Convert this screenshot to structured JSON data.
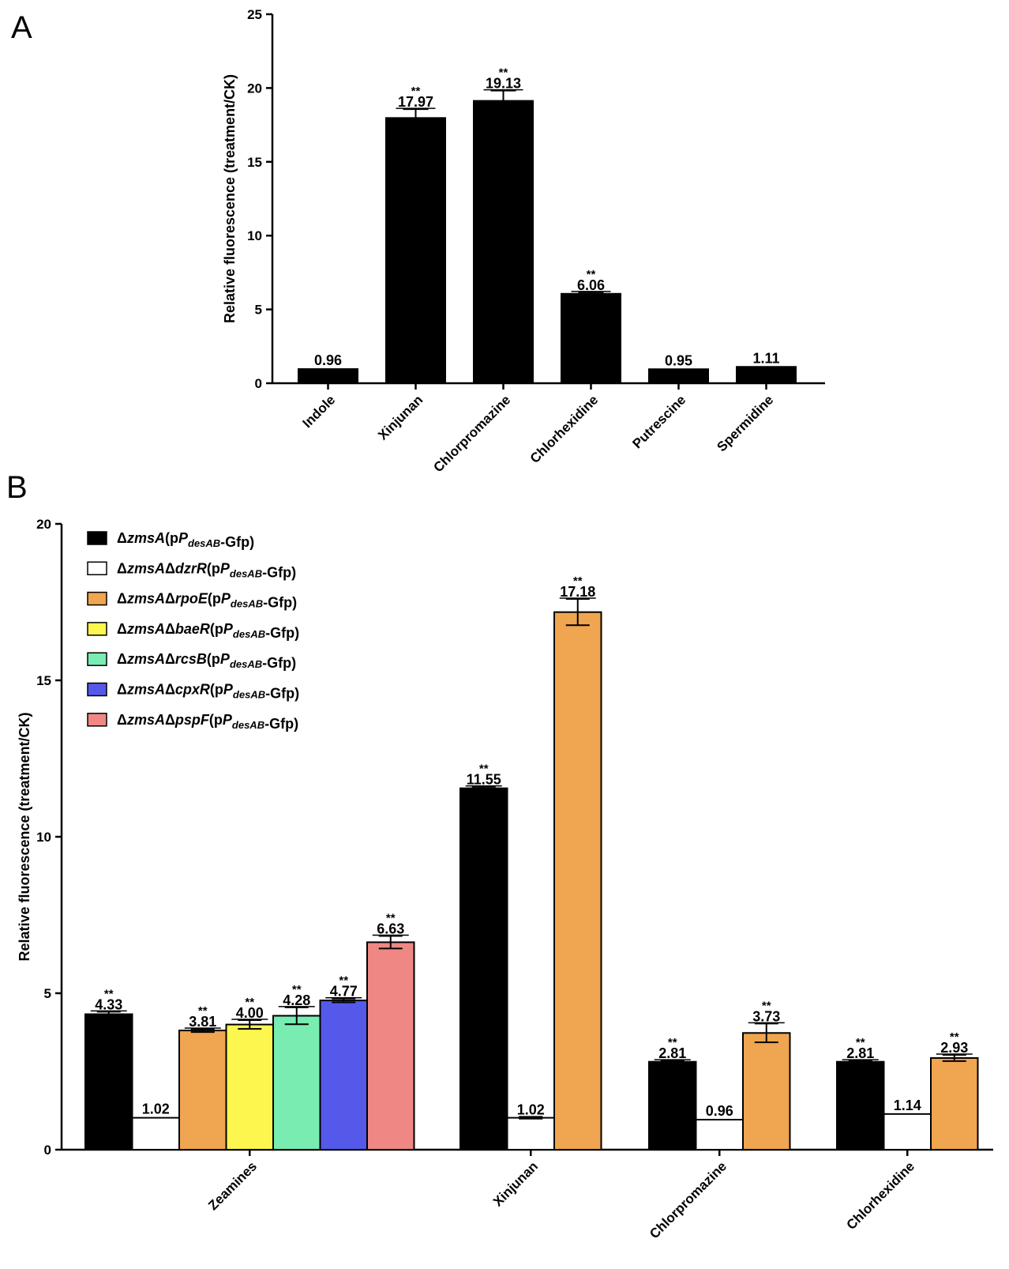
{
  "panels": {
    "a": {
      "letter": "A"
    },
    "b": {
      "letter": "B"
    }
  },
  "chart_data": [
    {
      "panel": "A",
      "type": "bar",
      "ylabel": "Relative fluorescence (treatment/CK)",
      "xlabel": "",
      "ylim": [
        0,
        25
      ],
      "yticks": [
        0,
        5,
        10,
        15,
        20,
        25
      ],
      "categories": [
        "Indole",
        "Xinjunan",
        "Chlorpromazine",
        "Chlorhexidine",
        "Putrescine",
        "Spermidine"
      ],
      "values": [
        0.96,
        17.97,
        19.13,
        6.06,
        0.95,
        1.11
      ],
      "labels": [
        "0.96",
        "17.97",
        "19.13",
        "6.06",
        "0.95",
        "1.11"
      ],
      "errors": [
        0,
        0.6,
        0.7,
        0.1,
        0,
        0
      ],
      "significance": [
        "",
        "**",
        "**",
        "**",
        "",
        ""
      ],
      "color": "#000000"
    },
    {
      "panel": "B",
      "type": "bar",
      "ylabel": "Relative fluorescence (treatment/CK)",
      "xlabel": "",
      "ylim": [
        0,
        20
      ],
      "yticks": [
        0,
        5,
        10,
        15,
        20
      ],
      "categories": [
        "Zeamines",
        "Xinjunan",
        "Chlorpromazine",
        "Chlorhexidine"
      ],
      "legend_position": "top-left",
      "series": [
        {
          "name": "ΔzmsA(pPdesAB-Gfp)",
          "legend_parts": [
            [
              "Δ",
              "n"
            ],
            [
              "zmsA",
              "i"
            ],
            [
              "(p",
              "n"
            ],
            [
              "P",
              "i"
            ],
            [
              "desAB",
              "si"
            ],
            [
              "-Gfp)",
              "n"
            ]
          ],
          "color": "#000000",
          "values": [
            4.33,
            11.55,
            2.81,
            2.81
          ],
          "labels": [
            "4.33",
            "11.55",
            "2.81",
            "2.81"
          ],
          "errors": [
            0.08,
            0.05,
            0.04,
            0.04
          ],
          "significance": [
            "**",
            "**",
            "**",
            "**"
          ]
        },
        {
          "name": "ΔzmsAΔdzrR(pPdesAB-Gfp)",
          "legend_parts": [
            [
              "Δ",
              "n"
            ],
            [
              "zmsA",
              "i"
            ],
            [
              "Δ",
              "n"
            ],
            [
              "dzrR",
              "i"
            ],
            [
              "(p",
              "n"
            ],
            [
              "P",
              "i"
            ],
            [
              "desAB",
              "si"
            ],
            [
              "-Gfp)",
              "n"
            ]
          ],
          "color": "#ffffff",
          "values": [
            1.02,
            1.02,
            0.96,
            1.14
          ],
          "labels": [
            "1.02",
            "1.02",
            "0.96",
            "1.14"
          ],
          "errors": [
            0,
            0.03,
            0,
            0
          ],
          "significance": [
            "",
            "",
            "",
            ""
          ]
        },
        {
          "name": "ΔzmsAΔrpoE(pPdesAB-Gfp)",
          "legend_parts": [
            [
              "Δ",
              "n"
            ],
            [
              "zmsA",
              "i"
            ],
            [
              "Δ",
              "n"
            ],
            [
              "rpoE",
              "i"
            ],
            [
              "(p",
              "n"
            ],
            [
              "P",
              "i"
            ],
            [
              "desAB",
              "si"
            ],
            [
              "-Gfp)",
              "n"
            ]
          ],
          "color": "#f0a550",
          "values": [
            3.81,
            17.18,
            3.73,
            2.93
          ],
          "labels": [
            "3.81",
            "17.18",
            "3.73",
            "2.93"
          ],
          "errors": [
            0.05,
            0.42,
            0.3,
            0.1
          ],
          "significance": [
            "**",
            "**",
            "**",
            "**"
          ]
        },
        {
          "name": "ΔzmsAΔbaeR(pPdesAB-Gfp)",
          "legend_parts": [
            [
              "Δ",
              "n"
            ],
            [
              "zmsA",
              "i"
            ],
            [
              "Δ",
              "n"
            ],
            [
              "baeR",
              "i"
            ],
            [
              "(p",
              "n"
            ],
            [
              "P",
              "i"
            ],
            [
              "desAB",
              "si"
            ],
            [
              "-Gfp)",
              "n"
            ]
          ],
          "color": "#fcf64f",
          "values": [
            4.0,
            null,
            null,
            null
          ],
          "labels": [
            "4.00",
            "",
            "",
            ""
          ],
          "errors": [
            0.14,
            0,
            0,
            0
          ],
          "significance": [
            "**",
            "",
            "",
            ""
          ]
        },
        {
          "name": "ΔzmsAΔrcsB(pPdesAB-Gfp)",
          "legend_parts": [
            [
              "Δ",
              "n"
            ],
            [
              "zmsA",
              "i"
            ],
            [
              "Δ",
              "n"
            ],
            [
              "rcsB",
              "i"
            ],
            [
              "(p",
              "n"
            ],
            [
              "P",
              "i"
            ],
            [
              "desAB",
              "si"
            ],
            [
              "-Gfp)",
              "n"
            ]
          ],
          "color": "#79ecb1",
          "values": [
            4.28,
            null,
            null,
            null
          ],
          "labels": [
            "4.28",
            "",
            "",
            ""
          ],
          "errors": [
            0.27,
            0,
            0,
            0
          ],
          "significance": [
            "**",
            "",
            "",
            ""
          ]
        },
        {
          "name": "ΔzmsAΔcpxR(pPdesAB-Gfp)",
          "legend_parts": [
            [
              "Δ",
              "n"
            ],
            [
              "zmsA",
              "i"
            ],
            [
              "Δ",
              "n"
            ],
            [
              "cpxR",
              "i"
            ],
            [
              "(p",
              "n"
            ],
            [
              "P",
              "i"
            ],
            [
              "desAB",
              "si"
            ],
            [
              "-Gfp)",
              "n"
            ]
          ],
          "color": "#5559ea",
          "values": [
            4.77,
            null,
            null,
            null
          ],
          "labels": [
            "4.77",
            "",
            "",
            ""
          ],
          "errors": [
            0.06,
            0,
            0,
            0
          ],
          "significance": [
            "**",
            "",
            "",
            ""
          ]
        },
        {
          "name": "ΔzmsAΔpspF(pPdesAB-Gfp)",
          "legend_parts": [
            [
              "Δ",
              "n"
            ],
            [
              "zmsA",
              "i"
            ],
            [
              "Δ",
              "n"
            ],
            [
              "pspF",
              "i"
            ],
            [
              "(p",
              "n"
            ],
            [
              "P",
              "i"
            ],
            [
              "desAB",
              "si"
            ],
            [
              "-Gfp)",
              "n"
            ]
          ],
          "color": "#ef8884",
          "values": [
            6.63,
            null,
            null,
            null
          ],
          "labels": [
            "6.63",
            "",
            "",
            ""
          ],
          "errors": [
            0.2,
            0,
            0,
            0
          ],
          "significance": [
            "**",
            "",
            "",
            ""
          ]
        }
      ]
    }
  ]
}
